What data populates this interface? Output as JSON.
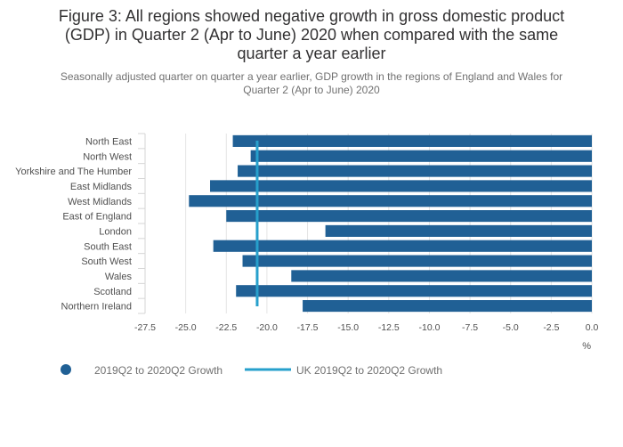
{
  "chart_data": {
    "type": "bar",
    "orientation": "horizontal",
    "title_lines": [
      "Figure 3: All regions showed negative growth in gross domestic product",
      "(GDP) in Quarter 2 (Apr to June) 2020 when compared with the same",
      "quarter a year earlier"
    ],
    "subtitle_lines": [
      "Seasonally adjusted quarter on quarter a year earlier, GDP growth in the regions of England and Wales for",
      "Quarter 2 (Apr to June) 2020"
    ],
    "categories": [
      "North East",
      "North West",
      "Yorkshire and The Humber",
      "East Midlands",
      "West Midlands",
      "East of England",
      "London",
      "South East",
      "South West",
      "Wales",
      "Scotland",
      "Northern Ireland"
    ],
    "series": [
      {
        "name": "2019Q2 to 2020Q2 Growth",
        "color": "#206095",
        "values": [
          -22.1,
          -21.0,
          -21.8,
          -23.5,
          -24.8,
          -22.5,
          -16.4,
          -23.3,
          -21.5,
          -18.5,
          -21.9,
          -17.8
        ]
      }
    ],
    "reference_line": {
      "name": "UK 2019Q2 to 2020Q2 Growth",
      "color": "#27A0CC",
      "value": -20.6
    },
    "x_ticks": [
      "-27.5",
      "-25.0",
      "-22.5",
      "-20.0",
      "-17.5",
      "-15.0",
      "-12.5",
      "-10.0",
      "-7.5",
      "-5.0",
      "-2.5",
      "0.0"
    ],
    "x_tick_values": [
      -27.5,
      -25,
      -22.5,
      -20,
      -17.5,
      -15,
      -12.5,
      -10,
      -7.5,
      -5,
      -2.5,
      0
    ],
    "xlim": [
      -27.5,
      0
    ],
    "x_unit": "%",
    "grid": true,
    "legend_position": "bottom-left"
  }
}
